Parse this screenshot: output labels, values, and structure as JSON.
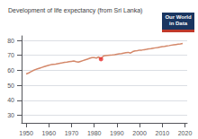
{
  "chart_data": {
    "type": "line",
    "title": "Development of life expectancy (from Sri Lanka)",
    "x": [
      1950,
      1951,
      1952,
      1953,
      1954,
      1955,
      1956,
      1957,
      1958,
      1959,
      1960,
      1961,
      1962,
      1963,
      1964,
      1965,
      1966,
      1967,
      1968,
      1969,
      1970,
      1971,
      1972,
      1973,
      1974,
      1975,
      1976,
      1977,
      1978,
      1979,
      1980,
      1981,
      1982,
      1983,
      1984,
      1985,
      1986,
      1987,
      1988,
      1989,
      1990,
      1991,
      1992,
      1993,
      1994,
      1995,
      1996,
      1997,
      1998,
      1999,
      2000,
      2001,
      2002,
      2003,
      2004,
      2005,
      2006,
      2007,
      2008,
      2009,
      2010,
      2011,
      2012,
      2013,
      2014,
      2015,
      2016,
      2017,
      2018,
      2019
    ],
    "series": [
      {
        "type": "line",
        "color": "#d4886a",
        "values": [
          57.6,
          58.2,
          59.0,
          59.8,
          60.5,
          61.0,
          61.5,
          62.0,
          62.5,
          63.0,
          63.4,
          63.8,
          64.0,
          64.2,
          64.5,
          64.8,
          65.0,
          65.3,
          65.5,
          65.8,
          66.0,
          66.2,
          65.8,
          65.5,
          66.0,
          66.5,
          67.0,
          67.5,
          68.0,
          68.5,
          68.5,
          68.2,
          69.0,
          67.5,
          69.5,
          69.8,
          70.0,
          70.2,
          70.3,
          70.5,
          70.8,
          71.0,
          71.2,
          71.5,
          71.8,
          72.0,
          71.5,
          72.5,
          73.0,
          73.2,
          73.5,
          73.5,
          73.8,
          74.0,
          74.3,
          74.5,
          74.8,
          75.0,
          75.2,
          75.5,
          75.8,
          76.0,
          76.3,
          76.5,
          76.8,
          77.0,
          77.2,
          77.4,
          77.6,
          77.9
        ]
      },
      {
        "type": "scatter",
        "color": "#e83030",
        "x": [
          1983
        ],
        "values": [
          67.5
        ]
      }
    ],
    "xlim": [
      1948,
      2021
    ],
    "ylim": [
      25,
      83
    ],
    "xticks": [
      1950,
      1960,
      1970,
      1980,
      1990,
      2000,
      2010,
      2020
    ],
    "yticks": [
      30,
      40,
      50,
      60,
      70,
      80
    ],
    "grid": true,
    "annotations": [
      "Our World",
      "in Data"
    ]
  }
}
